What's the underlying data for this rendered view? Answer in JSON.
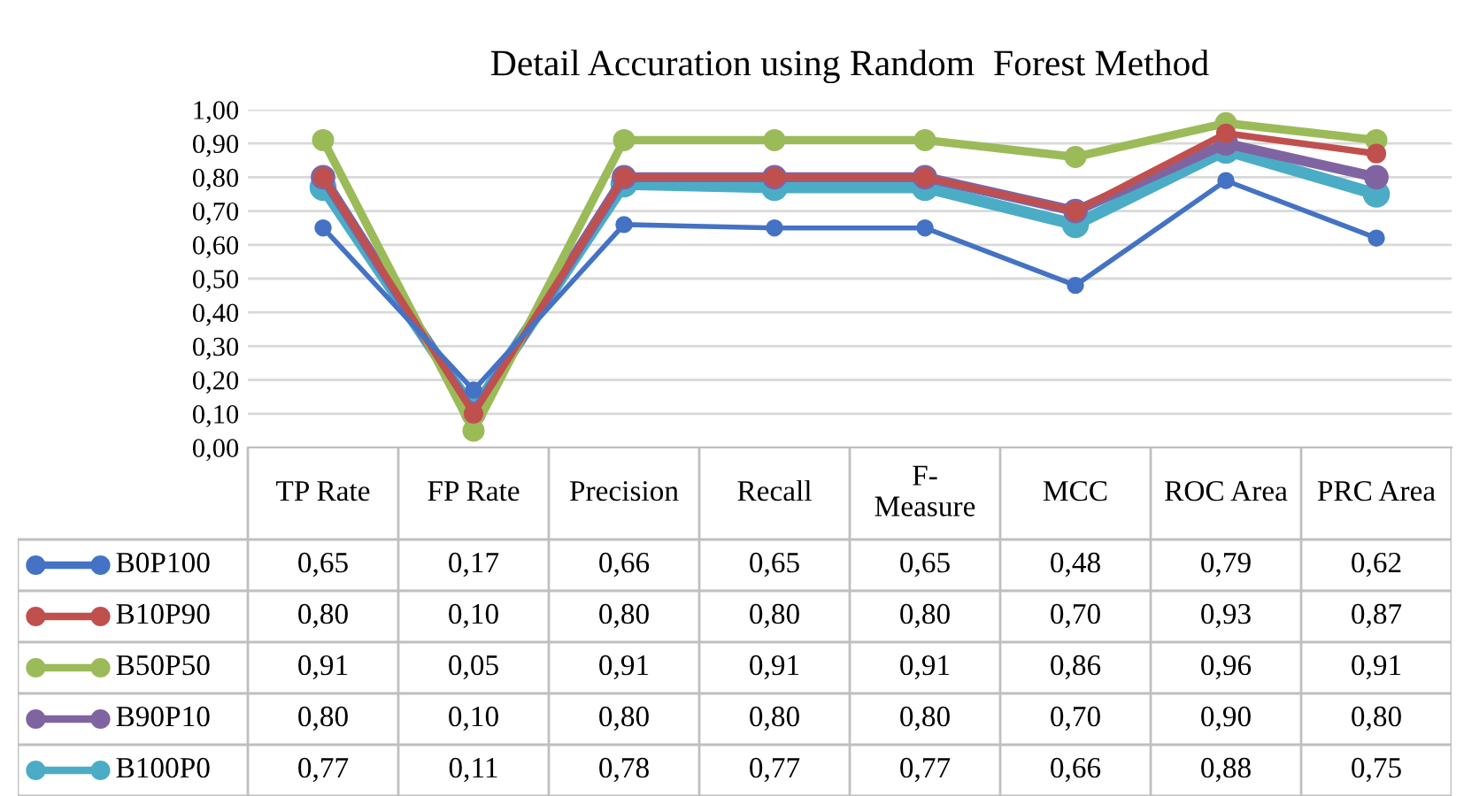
{
  "chart_data": {
    "type": "line",
    "title": "Detail Accuration using Random  Forest Method",
    "categories": [
      "TP Rate",
      "FP Rate",
      "Precision",
      "Recall",
      "F-Measure",
      "MCC",
      "ROC Area",
      "PRC Area"
    ],
    "series": [
      {
        "name": "B0P100",
        "color": "#4472c4",
        "values": [
          0.65,
          0.17,
          0.66,
          0.65,
          0.65,
          0.48,
          0.79,
          0.62
        ],
        "value_labels": [
          "0,65",
          "0,17",
          "0,66",
          "0,65",
          "0,65",
          "0,48",
          "0,79",
          "0,62"
        ]
      },
      {
        "name": "B10P90",
        "color": "#c0504d",
        "values": [
          0.8,
          0.1,
          0.8,
          0.8,
          0.8,
          0.7,
          0.93,
          0.87
        ],
        "value_labels": [
          "0,80",
          "0,10",
          "0,80",
          "0,80",
          "0,80",
          "0,70",
          "0,93",
          "0,87"
        ]
      },
      {
        "name": "B50P50",
        "color": "#9bbb59",
        "values": [
          0.91,
          0.05,
          0.91,
          0.91,
          0.91,
          0.86,
          0.96,
          0.91
        ],
        "value_labels": [
          "0,91",
          "0,05",
          "0,91",
          "0,91",
          "0,91",
          "0,86",
          "0,96",
          "0,91"
        ]
      },
      {
        "name": "B90P10",
        "color": "#8064a2",
        "values": [
          0.8,
          0.1,
          0.8,
          0.8,
          0.8,
          0.7,
          0.9,
          0.8
        ],
        "value_labels": [
          "0,80",
          "0,10",
          "0,80",
          "0,80",
          "0,80",
          "0,70",
          "0,90",
          "0,80"
        ]
      },
      {
        "name": "B100P0",
        "color": "#4bacc6",
        "values": [
          0.77,
          0.11,
          0.78,
          0.77,
          0.77,
          0.66,
          0.88,
          0.75
        ],
        "value_labels": [
          "0,77",
          "0,11",
          "0,78",
          "0,77",
          "0,77",
          "0,66",
          "0,88",
          "0,75"
        ]
      }
    ],
    "ylim": [
      0,
      1
    ],
    "yticks": [
      {
        "value": 0,
        "label": "0,00"
      },
      {
        "value": 0.1,
        "label": "0,10"
      },
      {
        "value": 0.2,
        "label": "0,20"
      },
      {
        "value": 0.3,
        "label": "0,30"
      },
      {
        "value": 0.4,
        "label": "0,40"
      },
      {
        "value": 0.5,
        "label": "0,50"
      },
      {
        "value": 0.6,
        "label": "0,60"
      },
      {
        "value": 0.7,
        "label": "0,70"
      },
      {
        "value": 0.8,
        "label": "0,80"
      },
      {
        "value": 0.9,
        "label": "0,90"
      },
      {
        "value": 1,
        "label": "1,00"
      }
    ],
    "grid": "y",
    "marker": "circle",
    "line_style": "solid",
    "legend": "bottom"
  }
}
